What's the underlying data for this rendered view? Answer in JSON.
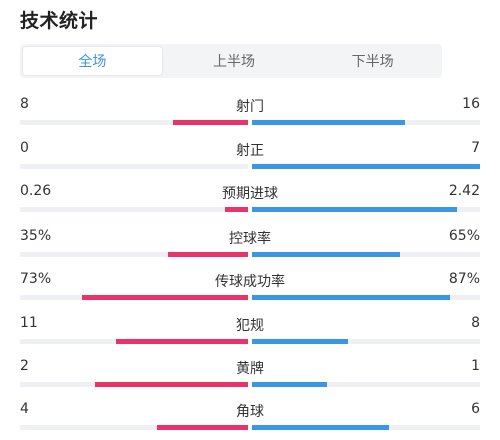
{
  "header": {
    "title": "技术统计"
  },
  "tabs": [
    {
      "label": "全场",
      "active": true
    },
    {
      "label": "上半场",
      "active": false
    },
    {
      "label": "下半场",
      "active": false
    }
  ],
  "colors": {
    "home": "#e8336b",
    "away": "#3a97e6",
    "active_tab": "#3d95e8"
  },
  "stats": [
    {
      "label": "射门",
      "home": "8",
      "away": "16",
      "home_fill": 0.33,
      "away_fill": 0.67
    },
    {
      "label": "射正",
      "home": "0",
      "away": "7",
      "home_fill": 0.0,
      "away_fill": 1.0
    },
    {
      "label": "预期进球",
      "home": "0.26",
      "away": "2.42",
      "home_fill": 0.1,
      "away_fill": 0.9
    },
    {
      "label": "控球率",
      "home": "35%",
      "away": "65%",
      "home_fill": 0.35,
      "away_fill": 0.65
    },
    {
      "label": "传球成功率",
      "home": "73%",
      "away": "87%",
      "home_fill": 0.73,
      "away_fill": 0.87
    },
    {
      "label": "犯规",
      "home": "11",
      "away": "8",
      "home_fill": 0.58,
      "away_fill": 0.42
    },
    {
      "label": "黄牌",
      "home": "2",
      "away": "1",
      "home_fill": 0.67,
      "away_fill": 0.33
    },
    {
      "label": "角球",
      "home": "4",
      "away": "6",
      "home_fill": 0.4,
      "away_fill": 0.6
    }
  ]
}
